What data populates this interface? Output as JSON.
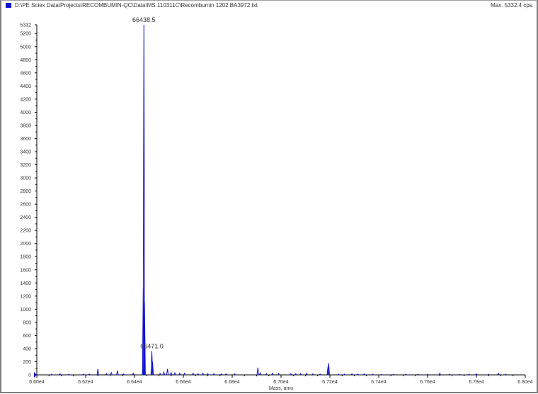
{
  "header": {
    "file_path": "D:\\PE Sciex Data\\Projects\\RECOMBUMIN-QC\\Data\\MS 110311C\\Recombumin 1202 BA3972.txt",
    "max_label": "Max. 5332.4 cps.",
    "series_color": "#1010d0"
  },
  "chart_data": {
    "type": "line",
    "title": "",
    "xlabel": "Mass, amu",
    "ylabel": "",
    "xlim": [
      66000,
      68000
    ],
    "ylim": [
      0,
      5332
    ],
    "x_ticks": [
      66000,
      66200,
      66400,
      66600,
      66800,
      67000,
      67200,
      67400,
      67600,
      67800,
      68000
    ],
    "x_tick_labels": [
      "6.60e4",
      "6.62e4",
      "6.64e4",
      "6.66e4",
      "6.68e4",
      "6.70e4",
      "6.72e4",
      "6.74e4",
      "6.76e4",
      "6.78e4",
      "6.80e4"
    ],
    "y_ticks": [
      0,
      200,
      400,
      600,
      800,
      1000,
      1200,
      1400,
      1600,
      1800,
      2000,
      2200,
      2400,
      2600,
      2800,
      3000,
      3200,
      3400,
      3600,
      3800,
      4000,
      4200,
      4400,
      4600,
      4800,
      5000,
      5200,
      5332
    ],
    "grid": false,
    "peak_labels": [
      {
        "mass": 66438.5,
        "intensity": 5332,
        "text": "66438.5"
      },
      {
        "mass": 66471.0,
        "intensity": 360,
        "text": "66471.0"
      }
    ],
    "peaks": [
      [
        66060,
        10
      ],
      [
        66095,
        15
      ],
      [
        66130,
        8
      ],
      [
        66190,
        10
      ],
      [
        66215,
        12
      ],
      [
        66250,
        90
      ],
      [
        66285,
        20
      ],
      [
        66305,
        35
      ],
      [
        66330,
        65
      ],
      [
        66355,
        15
      ],
      [
        66395,
        25
      ],
      [
        66436,
        1330
      ],
      [
        66438.5,
        5332
      ],
      [
        66441,
        1100
      ],
      [
        66471,
        360
      ],
      [
        66474,
        200
      ],
      [
        66505,
        20
      ],
      [
        66520,
        40
      ],
      [
        66535,
        90
      ],
      [
        66550,
        35
      ],
      [
        66565,
        30
      ],
      [
        66585,
        25
      ],
      [
        66605,
        25
      ],
      [
        66640,
        25
      ],
      [
        66660,
        20
      ],
      [
        66680,
        25
      ],
      [
        66700,
        20
      ],
      [
        66725,
        20
      ],
      [
        66755,
        15
      ],
      [
        66775,
        15
      ],
      [
        66810,
        15
      ],
      [
        66905,
        110
      ],
      [
        66915,
        30
      ],
      [
        66940,
        20
      ],
      [
        66965,
        25
      ],
      [
        66990,
        20
      ],
      [
        67040,
        20
      ],
      [
        67060,
        15
      ],
      [
        67080,
        20
      ],
      [
        67105,
        25
      ],
      [
        67130,
        15
      ],
      [
        67160,
        12
      ],
      [
        67192,
        120
      ],
      [
        67195,
        180
      ],
      [
        67235,
        10
      ],
      [
        67260,
        12
      ],
      [
        67290,
        15
      ],
      [
        67315,
        12
      ],
      [
        67340,
        15
      ],
      [
        67375,
        10
      ],
      [
        67410,
        8
      ],
      [
        67460,
        8
      ],
      [
        67510,
        10
      ],
      [
        67560,
        10
      ],
      [
        67600,
        10
      ],
      [
        67650,
        25
      ],
      [
        67690,
        10
      ],
      [
        67730,
        10
      ],
      [
        67770,
        12
      ],
      [
        67800,
        15
      ],
      [
        67850,
        10
      ],
      [
        67890,
        25
      ],
      [
        67920,
        10
      ]
    ]
  }
}
